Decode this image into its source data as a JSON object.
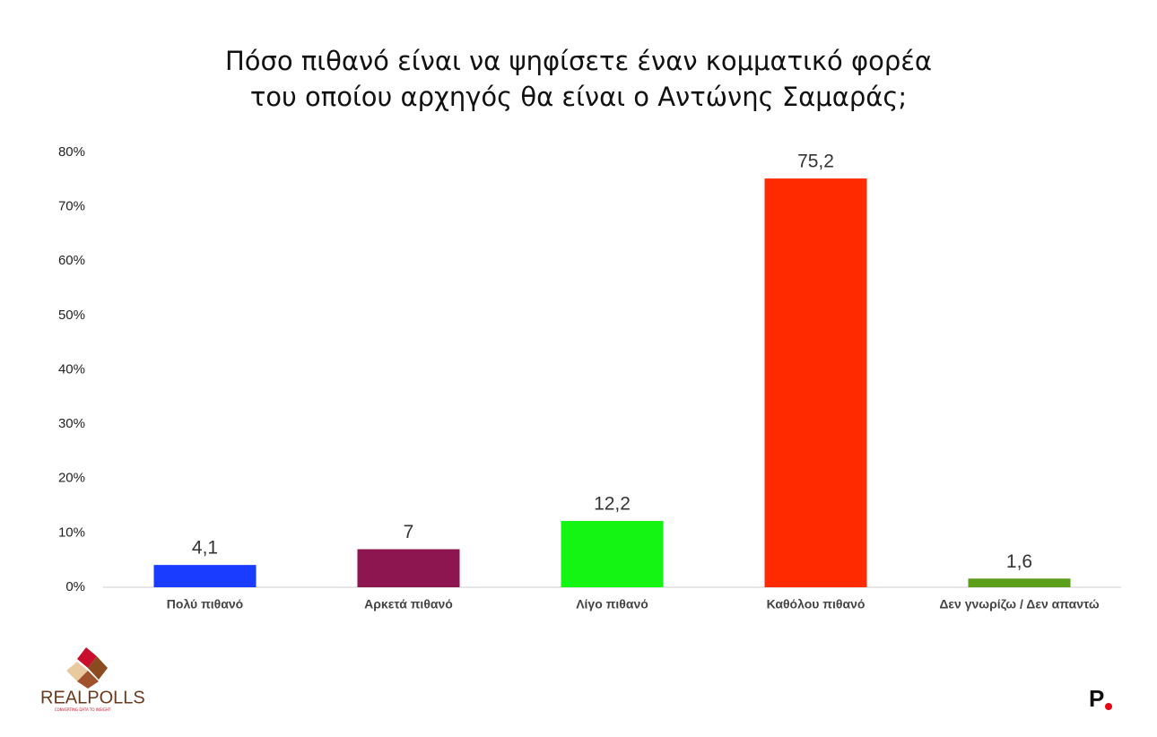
{
  "chart_data": {
    "type": "bar",
    "title": [
      "Πόσο πιθανό είναι να ψηφίσετε έναν κομματικό φορέα",
      "του οποίου αρχηγός θα είναι ο Αντώνης Σαμαράς;"
    ],
    "categories": [
      "Πολύ πιθανό",
      "Αρκετά πιθανό",
      "Λίγο πιθανό",
      "Καθόλου πιθανό",
      "Δεν γνωρίζω / Δεν απαντώ"
    ],
    "values": [
      4.1,
      7,
      12.2,
      75.2,
      1.6
    ],
    "value_labels": [
      "4,1",
      "7",
      "12,2",
      "75,2",
      "1,6"
    ],
    "colors": [
      "#1a3cff",
      "#8e1650",
      "#14f514",
      "#ff2a00",
      "#5a9e1a"
    ],
    "ylim": [
      0,
      80
    ],
    "yticks": [
      {
        "value": 0,
        "label": "0%"
      },
      {
        "value": 10,
        "label": "10%"
      },
      {
        "value": 20,
        "label": "20%"
      },
      {
        "value": 30,
        "label": "30%"
      },
      {
        "value": 40,
        "label": "40%"
      },
      {
        "value": 50,
        "label": "50%"
      },
      {
        "value": 60,
        "label": "60%"
      },
      {
        "value": 70,
        "label": "70%"
      },
      {
        "value": 80,
        "label": "80%"
      }
    ],
    "grid": false
  },
  "logo": {
    "name": "REALPOLLS",
    "tagline": "CONVERTING DATA TO INSIGHT",
    "publisher": "P"
  }
}
